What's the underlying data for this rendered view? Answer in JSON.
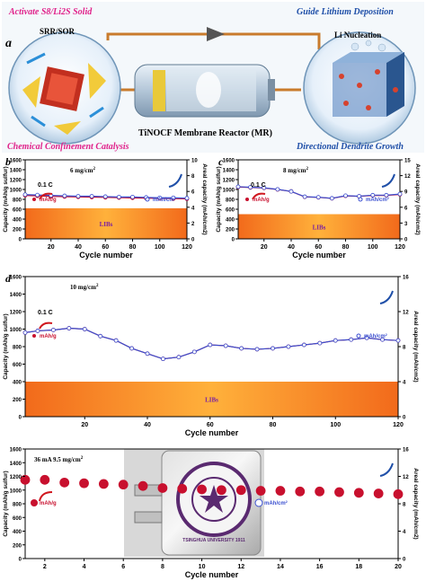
{
  "schematic": {
    "panel_letter": "a",
    "top_left_title": "Activate S8/Li2S Solid",
    "top_right_title": "Guide Lithium Deposition",
    "left_circle_label": "SRR/SOR",
    "right_circle_label": "Li Nucleation",
    "bottom_left_caption": "Chemical Confinement Catalysis",
    "bottom_center_caption": "TiNOCF Membrane Reactor (MR)",
    "bottom_right_caption": "Directional Dendrite Growth",
    "colors": {
      "magenta": "#e0218a",
      "blue": "#1f4fa8",
      "battery": "#b8c7d6"
    }
  },
  "panels": [
    {
      "letter": "b",
      "loading": "6 mg/cm",
      "loading_sup": "2",
      "rate_label": "0.1 C",
      "legend_left": "mAh/g",
      "legend_right": "mAh/cm",
      "legend_right_sup": "2",
      "band_label": "LIBs",
      "xlabel": "Cycle number",
      "ylabel_left": "Capacity (mAh/g sulfur)",
      "ylabel_right": "Areal capacity (mAh/cm2)",
      "xticks": [
        "20",
        "40",
        "60",
        "80",
        "100",
        "120"
      ],
      "yticks_left": [
        "0",
        "200",
        "400",
        "600",
        "800",
        "1000",
        "1200",
        "1400",
        "1600"
      ],
      "yticks_right": [
        "0",
        "2",
        "4",
        "6",
        "8",
        "10"
      ]
    },
    {
      "letter": "c",
      "loading": "8 mg/cm",
      "loading_sup": "2",
      "rate_label": "0.1 C",
      "legend_left": "mAh/g",
      "legend_right": "mAh/cm",
      "legend_right_sup": "2",
      "band_label": "LIBs",
      "xlabel": "Cycle number",
      "ylabel_left": "Capacity (mAh/g sulfur)",
      "ylabel_right": "Areal capacity (mAh/cm2)",
      "xticks": [
        "20",
        "40",
        "60",
        "80",
        "100",
        "120"
      ],
      "yticks_left": [
        "0",
        "200",
        "400",
        "600",
        "800",
        "1000",
        "1200",
        "1400",
        "1600"
      ],
      "yticks_right": [
        "0",
        "3",
        "6",
        "9",
        "12",
        "15"
      ]
    },
    {
      "letter": "d",
      "loading": "10 mg/cm",
      "loading_sup": "2",
      "rate_label": "0.1 C",
      "legend_left": "mAh/g",
      "legend_right": "mAh/cm",
      "legend_right_sup": "2",
      "band_label": "LIBs",
      "xlabel": "Cycle number",
      "ylabel_left": "Capacity (mAh/g sulfur)",
      "ylabel_right": "Areal capacity (mAh/cm2)",
      "xticks": [
        "20",
        "40",
        "60",
        "80",
        "100",
        "120"
      ],
      "yticks_left": [
        "0",
        "200",
        "400",
        "600",
        "800",
        "1000",
        "1200",
        "1400",
        "1600"
      ],
      "yticks_right": [
        "0",
        "4",
        "8",
        "12",
        "16"
      ]
    },
    {
      "letter": "",
      "loading": "36 mA   9.5 mg/cm",
      "loading_sup": "2",
      "rate_label": "",
      "legend_left": "mAh/g",
      "legend_right": "mAh/cm",
      "legend_right_sup": "2",
      "band_label": "",
      "xlabel": "Cycle number",
      "ylabel_left": "Capacity (mAh/g sulfur)",
      "ylabel_right": "Areal capacity (mAh/cm2)",
      "xticks": [
        "2",
        "4",
        "6",
        "8",
        "10",
        "12",
        "14",
        "16",
        "18",
        "20"
      ],
      "yticks_left": [
        "0",
        "200",
        "400",
        "600",
        "800",
        "1000",
        "1200",
        "1400",
        "1600"
      ],
      "yticks_right": [
        "0",
        "4",
        "8",
        "12",
        "16"
      ],
      "photo_seal_text": "TSINGHUA UNIVERSITY 1911"
    }
  ],
  "chart_data": [
    {
      "type": "line",
      "panel": "b",
      "x_range": [
        1,
        120
      ],
      "ylim": [
        0,
        1600
      ],
      "y2lim": [
        0,
        10
      ],
      "series": [
        {
          "name": "mAh/g",
          "color": "#c8102e",
          "marker": "filled-circle",
          "x": [
            1,
            10,
            20,
            30,
            40,
            50,
            60,
            70,
            80,
            90,
            100,
            110,
            120
          ],
          "values": [
            880,
            870,
            860,
            855,
            850,
            845,
            840,
            835,
            830,
            825,
            820,
            815,
            810
          ]
        },
        {
          "name": "mAh/cm2",
          "color": "#3a4fd0",
          "marker": "open-circle",
          "x": [
            1,
            10,
            20,
            30,
            40,
            50,
            60,
            70,
            80,
            90,
            100,
            110,
            120
          ],
          "values": [
            5.6,
            5.55,
            5.5,
            5.45,
            5.4,
            5.4,
            5.35,
            5.3,
            5.3,
            5.25,
            5.2,
            5.2,
            5.15
          ]
        }
      ],
      "band": {
        "label": "LIBs",
        "ymin": 0,
        "ymax": 620
      }
    },
    {
      "type": "line",
      "panel": "c",
      "x_range": [
        1,
        120
      ],
      "ylim": [
        0,
        1600
      ],
      "y2lim": [
        0,
        15
      ],
      "series": [
        {
          "name": "mAh/g",
          "color": "#c8102e",
          "marker": "filled-circle",
          "x": [
            1,
            10,
            20,
            30,
            40,
            50,
            60,
            70,
            80,
            90,
            100,
            110,
            120
          ],
          "values": [
            1050,
            1040,
            1030,
            1000,
            960,
            850,
            840,
            820,
            870,
            860,
            880,
            880,
            900
          ]
        },
        {
          "name": "mAh/cm2",
          "color": "#3a4fd0",
          "marker": "open-circle",
          "x": [
            1,
            10,
            20,
            30,
            40,
            50,
            60,
            70,
            80,
            90,
            100,
            110,
            120
          ],
          "values": [
            9.9,
            9.8,
            9.7,
            9.4,
            9.0,
            8.0,
            7.9,
            7.7,
            8.2,
            8.1,
            8.3,
            8.3,
            8.5
          ]
        }
      ],
      "band": {
        "label": "LIBs",
        "ymin": 0,
        "ymax": 500
      }
    },
    {
      "type": "line",
      "panel": "d",
      "x_range": [
        1,
        120
      ],
      "ylim": [
        0,
        1600
      ],
      "y2lim": [
        0,
        16
      ],
      "series": [
        {
          "name": "mAh/g",
          "color": "#c8102e",
          "marker": "filled-circle",
          "x": [
            1,
            5,
            10,
            15,
            20,
            25,
            30,
            35,
            40,
            45,
            50,
            55,
            60,
            65,
            70,
            75,
            80,
            85,
            90,
            95,
            100,
            105,
            110,
            115,
            120
          ],
          "values": [
            960,
            980,
            990,
            1010,
            1000,
            920,
            870,
            780,
            720,
            660,
            680,
            740,
            820,
            810,
            780,
            770,
            780,
            800,
            820,
            840,
            870,
            880,
            900,
            880,
            870
          ]
        },
        {
          "name": "mAh/cm2",
          "color": "#3a4fd0",
          "marker": "open-circle",
          "x": [
            1,
            5,
            10,
            15,
            20,
            25,
            30,
            35,
            40,
            45,
            50,
            55,
            60,
            65,
            70,
            75,
            80,
            85,
            90,
            95,
            100,
            105,
            110,
            115,
            120
          ],
          "values": [
            9.6,
            9.8,
            9.9,
            10.1,
            10.0,
            9.2,
            8.7,
            7.8,
            7.2,
            6.6,
            6.8,
            7.4,
            8.2,
            8.1,
            7.8,
            7.7,
            7.8,
            8.0,
            8.2,
            8.4,
            8.7,
            8.8,
            9.0,
            8.8,
            8.7
          ]
        }
      ],
      "band": {
        "label": "LIBs",
        "ymin": 0,
        "ymax": 400
      }
    },
    {
      "type": "scatter",
      "panel": "e",
      "x_range": [
        1,
        20
      ],
      "ylim": [
        0,
        1600
      ],
      "y2lim": [
        0,
        16
      ],
      "series": [
        {
          "name": "mAh/g",
          "color": "#c8102e",
          "marker": "filled-circle",
          "x": [
            1,
            2,
            3,
            4,
            5,
            6,
            7,
            8,
            9,
            10,
            11,
            12,
            13,
            14,
            15,
            16,
            17,
            18,
            19,
            20
          ],
          "values": [
            1150,
            1150,
            1110,
            1100,
            1090,
            1080,
            1060,
            1030,
            1020,
            1010,
            1000,
            1000,
            990,
            990,
            980,
            980,
            970,
            960,
            950,
            940
          ]
        }
      ]
    }
  ]
}
